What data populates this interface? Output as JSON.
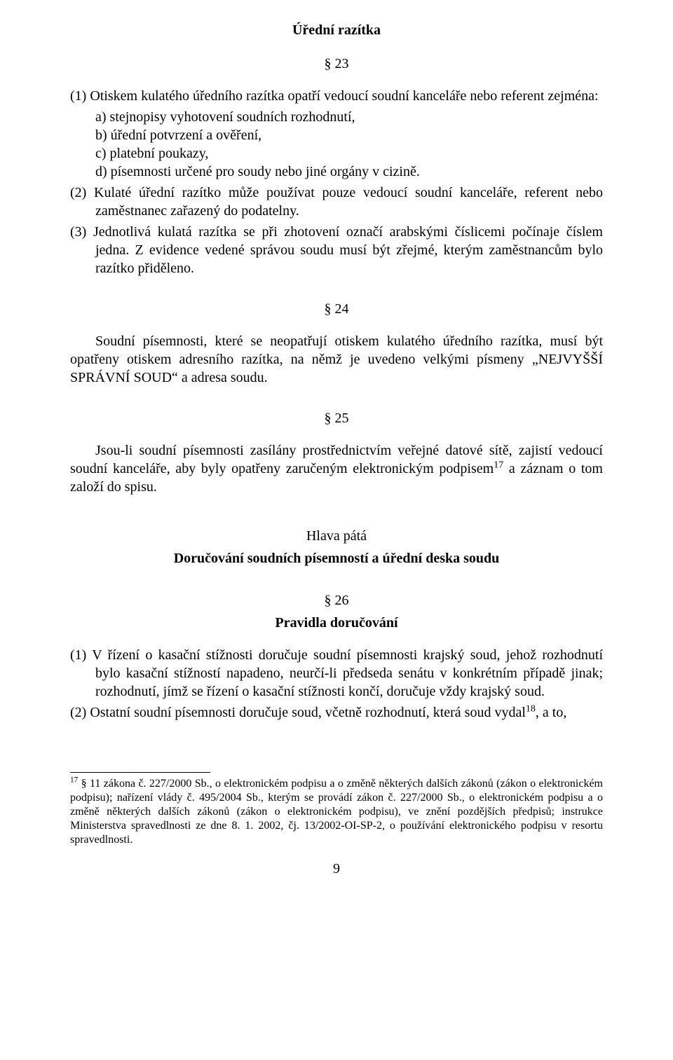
{
  "page_number": "9",
  "sec23": {
    "title": "Úřední razítka",
    "mark": "§ 23",
    "p1_lead": "(1) Otiskem kulatého úředního razítka opatří vedoucí soudní kanceláře nebo referent zejména:",
    "p1_a": "a) stejnopisy vyhotovení soudních rozhodnutí,",
    "p1_b": "b) úřední potvrzení a ověření,",
    "p1_c": "c) platební poukazy,",
    "p1_d": "d) písemnosti určené pro soudy nebo jiné orgány v cizině.",
    "p2": "(2) Kulaté úřední razítko může používat pouze vedoucí soudní kanceláře, referent nebo zaměstnanec zařazený do podatelny.",
    "p3": "(3) Jednotlivá kulatá razítka se při zhotovení označí arabskými číslicemi počínaje číslem jedna. Z evidence vedené správou soudu musí být zřejmé, kterým zaměstnancům bylo razítko přiděleno."
  },
  "sec24": {
    "mark": "§ 24",
    "body": "Soudní písemnosti, které se neopatřují otiskem kulatého úředního razítka, musí být opatřeny otiskem adresního razítka, na němž je uvedeno velkými písmeny „NEJVYŠŠÍ SPRÁVNÍ SOUD“ a adresa soudu."
  },
  "sec25": {
    "mark": "§ 25",
    "body_pre": "Jsou-li soudní písemnosti zasílány prostřednictvím veřejné datové sítě, zajistí vedoucí soudní kanceláře, aby byly opatřeny zaručeným elektronickým podpisem",
    "sup": "17",
    "body_post": " a záznam o tom založí do spisu."
  },
  "chapter5": {
    "label": "Hlava pátá",
    "title": "Doručování soudních písemností a úřední deska soudu"
  },
  "sec26": {
    "mark": "§ 26",
    "subtitle": "Pravidla doručování",
    "p1": "(1) V řízení o kasační stížnosti doručuje soudní písemnosti krajský soud, jehož rozhodnutí bylo kasační stížností napadeno, neurčí-li předseda senátu v konkrétním případě jinak; rozhodnutí, jímž se řízení o kasační stížnosti končí, doručuje vždy krajský soud.",
    "p2_pre": "(2) Ostatní soudní písemnosti doručuje soud, včetně rozhodnutí, která soud vydal",
    "p2_sup": "18",
    "p2_post": ", a to,"
  },
  "footnote17": {
    "sup": "17",
    "text": " § 11 zákona č. 227/2000 Sb., o elektronickém podpisu a o změně některých dalších zákonů (zákon o elektronickém podpisu); nařízení vlády č. 495/2004 Sb., kterým se provádí zákon č. 227/2000 Sb., o elektronickém podpisu a o změně některých dalších zákonů (zákon o elektronickém podpisu), ve znění pozdějších předpisů; instrukce Ministerstva spravedlnosti ze dne 8. 1. 2002, čj. 13/2002-OI-SP-2, o používání elektronického podpisu v resortu spravedlnosti."
  }
}
